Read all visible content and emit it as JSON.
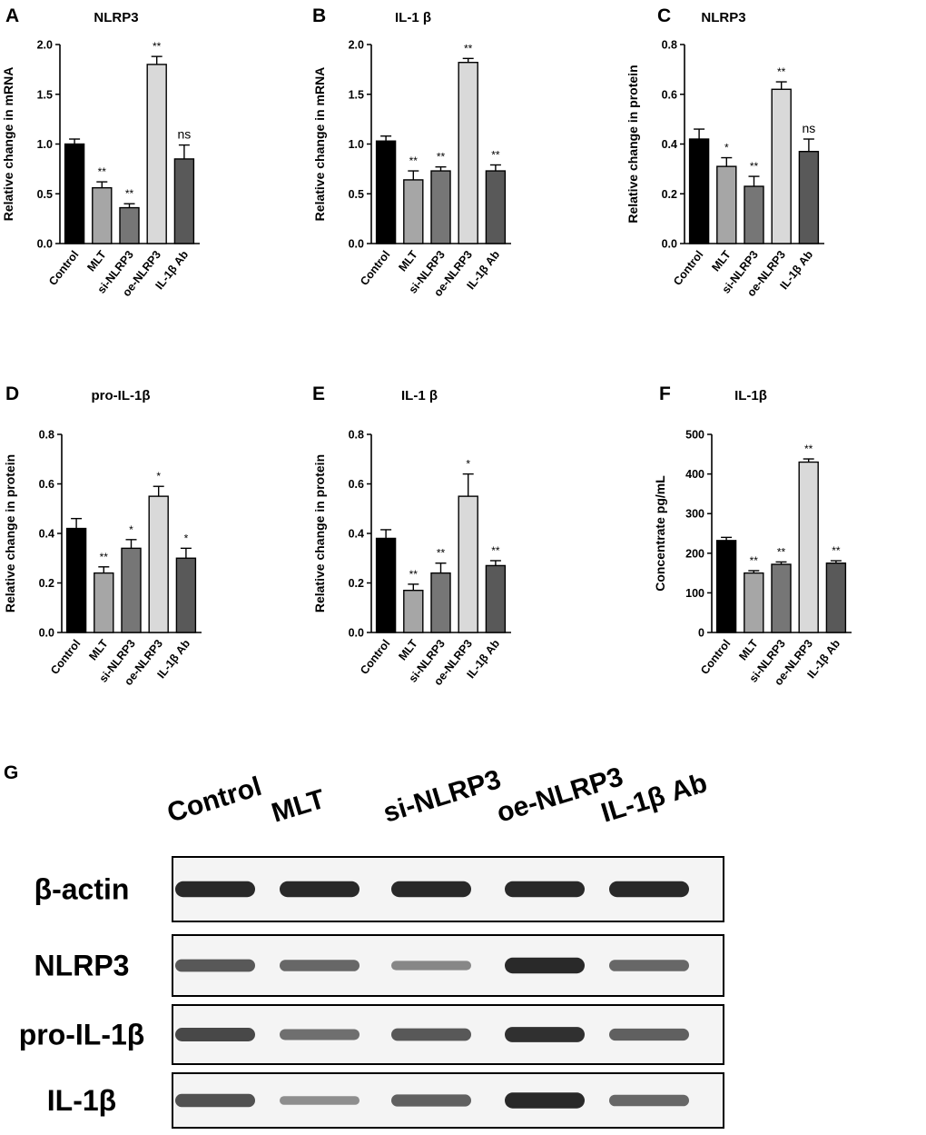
{
  "categories": [
    "Control",
    "MLT",
    "si-NLRP3",
    "oe-NLRP3",
    "IL-1β Ab"
  ],
  "colors": {
    "bars": [
      "#000000",
      "#a6a6a6",
      "#767676",
      "#d9d9d9",
      "#595959"
    ],
    "bar_stroke": "#000000",
    "blot_band": "#1a1a1a"
  },
  "chart_data": [
    {
      "panel": "A",
      "type": "bar",
      "title": "NLRP3",
      "ylabel": "Relative change in mRNA",
      "ylim": [
        0,
        2.0
      ],
      "yticks": [
        0.0,
        0.5,
        1.0,
        1.5,
        2.0
      ],
      "tick_decimals": 1,
      "categories": [
        "Control",
        "MLT",
        "si-NLRP3",
        "oe-NLRP3",
        "IL-1β Ab"
      ],
      "values": [
        1.0,
        0.56,
        0.36,
        1.8,
        0.85
      ],
      "errors": [
        0.05,
        0.06,
        0.04,
        0.08,
        0.14
      ],
      "significance": [
        "",
        "**",
        "**",
        "**",
        "ns"
      ]
    },
    {
      "panel": "B",
      "type": "bar",
      "title": "IL-1 β",
      "ylabel": "Relative change in mRNA",
      "ylim": [
        0,
        2.0
      ],
      "yticks": [
        0.0,
        0.5,
        1.0,
        1.5,
        2.0
      ],
      "tick_decimals": 1,
      "categories": [
        "Control",
        "MLT",
        "si-NLRP3",
        "oe-NLRP3",
        "IL-1β Ab"
      ],
      "values": [
        1.03,
        0.64,
        0.73,
        1.82,
        0.73
      ],
      "errors": [
        0.05,
        0.09,
        0.04,
        0.04,
        0.06
      ],
      "significance": [
        "",
        "**",
        "**",
        "**",
        "**"
      ]
    },
    {
      "panel": "C",
      "type": "bar",
      "title": "NLRP3",
      "ylabel": "Relative change in protein",
      "ylim": [
        0,
        0.8
      ],
      "yticks": [
        0.0,
        0.2,
        0.4,
        0.6,
        0.8
      ],
      "tick_decimals": 1,
      "categories": [
        "Control",
        "MLT",
        "si-NLRP3",
        "oe-NLRP3",
        "IL-1β Ab"
      ],
      "values": [
        0.42,
        0.31,
        0.23,
        0.62,
        0.37
      ],
      "errors": [
        0.04,
        0.035,
        0.04,
        0.03,
        0.05
      ],
      "significance": [
        "",
        "*",
        "**",
        "**",
        "ns"
      ]
    },
    {
      "panel": "D",
      "type": "bar",
      "title": "pro-IL-1β",
      "ylabel": "Relative change in protein",
      "ylim": [
        0,
        0.8
      ],
      "yticks": [
        0.0,
        0.2,
        0.4,
        0.6,
        0.8
      ],
      "tick_decimals": 1,
      "categories": [
        "Control",
        "MLT",
        "si-NLRP3",
        "oe-NLRP3",
        "IL-1β Ab"
      ],
      "values": [
        0.42,
        0.24,
        0.34,
        0.55,
        0.3
      ],
      "errors": [
        0.04,
        0.025,
        0.035,
        0.04,
        0.04
      ],
      "significance": [
        "",
        "**",
        "*",
        "*",
        "*"
      ]
    },
    {
      "panel": "E",
      "type": "bar",
      "title": "IL-1 β",
      "ylabel": "Relative change in protein",
      "ylim": [
        0,
        0.8
      ],
      "yticks": [
        0.0,
        0.2,
        0.4,
        0.6,
        0.8
      ],
      "tick_decimals": 1,
      "categories": [
        "Control",
        "MLT",
        "si-NLRP3",
        "oe-NLRP3",
        "IL-1β Ab"
      ],
      "values": [
        0.38,
        0.17,
        0.24,
        0.55,
        0.27
      ],
      "errors": [
        0.035,
        0.025,
        0.04,
        0.09,
        0.02
      ],
      "significance": [
        "",
        "**",
        "**",
        "*",
        "**"
      ]
    },
    {
      "panel": "F",
      "type": "bar",
      "title": "IL-1β",
      "ylabel": "Concentrate pg/mL",
      "ylim": [
        0,
        500
      ],
      "yticks": [
        0,
        100,
        200,
        300,
        400,
        500
      ],
      "tick_decimals": 0,
      "categories": [
        "Control",
        "MLT",
        "si-NLRP3",
        "oe-NLRP3",
        "IL-1β Ab"
      ],
      "values": [
        232,
        150,
        172,
        430,
        175
      ],
      "errors": [
        8,
        6,
        6,
        8,
        6
      ],
      "significance": [
        "",
        "**",
        "**",
        "**",
        "**"
      ]
    }
  ],
  "western_blot": {
    "panel": "G",
    "lanes": [
      "Control",
      "MLT",
      "si-NLRP3",
      "oe-NLRP3",
      "IL-1β Ab"
    ],
    "rows": [
      {
        "label": "β-actin",
        "intensities": [
          0.95,
          0.95,
          0.95,
          0.95,
          0.95
        ]
      },
      {
        "label": "NLRP3",
        "intensities": [
          0.65,
          0.55,
          0.35,
          0.95,
          0.55
        ]
      },
      {
        "label": "pro-IL-1β",
        "intensities": [
          0.75,
          0.5,
          0.65,
          0.9,
          0.6
        ]
      },
      {
        "label": "IL-1β",
        "intensities": [
          0.7,
          0.3,
          0.6,
          0.95,
          0.55
        ]
      }
    ]
  }
}
